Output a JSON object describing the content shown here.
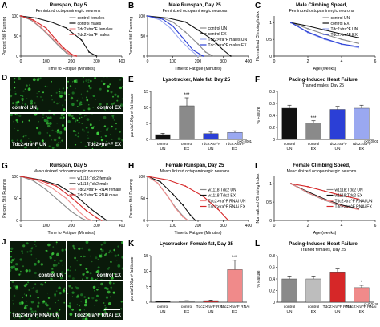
{
  "colors": {
    "black": "#111111",
    "gray": "#8a8a8a",
    "lightgray": "#bdbdbd",
    "red": "#d62728",
    "pink": "#f08a8a",
    "blue": "#2b3fd6",
    "lightblue": "#9aa8f0"
  },
  "images": {
    "D": {
      "label": "D",
      "tiles": [
        {
          "text": "control UN"
        },
        {
          "text": "control EX"
        },
        {
          "text": "Tdc2>tra^F UN"
        },
        {
          "text": "Tdc2>tra^F EX"
        }
      ]
    },
    "J": {
      "label": "J",
      "tiles": [
        {
          "text": "control UN"
        },
        {
          "text": "control EX"
        },
        {
          "text": "Tdc2>tra^F RNAi UN"
        },
        {
          "text": "Tdc2>tra^F RNAi EX"
        }
      ]
    }
  },
  "chart_data": [
    {
      "id": "A",
      "label": "A",
      "type": "line",
      "title": "Runspan, Day 5",
      "subtitle": "Feminized octopaminergic neurons",
      "xlabel": "Time to Fatigue (Minutes)",
      "ylabel": "Percent Still Running",
      "xlim": [
        0,
        400
      ],
      "ylim": [
        0,
        100
      ],
      "xticks": [
        0,
        100,
        200,
        300,
        400
      ],
      "yticks": [
        0,
        50,
        100
      ],
      "legend_position": "top-right",
      "series": [
        {
          "name": "control females",
          "color": "#8a8a8a",
          "x": [
            0,
            40,
            80,
            120,
            150,
            180,
            210
          ],
          "y": [
            100,
            90,
            70,
            45,
            25,
            8,
            0
          ]
        },
        {
          "name": "control males",
          "color": "#111111",
          "x": [
            0,
            60,
            120,
            180,
            240,
            270,
            300
          ],
          "y": [
            100,
            95,
            85,
            70,
            40,
            10,
            0
          ]
        },
        {
          "name": "Tdc2>tra^F females",
          "color": "#f08a8a",
          "x": [
            0,
            40,
            80,
            120,
            160,
            190,
            210
          ],
          "y": [
            100,
            92,
            72,
            48,
            22,
            6,
            0
          ]
        },
        {
          "name": "Tdc2>tra^F males",
          "color": "#d62728",
          "x": [
            0,
            50,
            100,
            140,
            170,
            200,
            220
          ],
          "y": [
            100,
            90,
            70,
            40,
            20,
            5,
            0
          ]
        }
      ]
    },
    {
      "id": "B",
      "label": "B",
      "type": "line",
      "title": "Male Runspan, Day 25",
      "subtitle": "Feminized octopaminergic neurons",
      "xlabel": "Time to Fatigue (Minutes)",
      "ylabel": "Percent Still Running",
      "xlim": [
        0,
        400
      ],
      "ylim": [
        0,
        100
      ],
      "xticks": [
        0,
        100,
        200,
        300,
        400
      ],
      "yticks": [
        0,
        50,
        100
      ],
      "legend_position": "right",
      "series": [
        {
          "name": "control UN",
          "color": "#8a8a8a",
          "x": [
            0,
            60,
            100,
            150,
            200,
            230,
            260
          ],
          "y": [
            100,
            95,
            85,
            60,
            30,
            10,
            0
          ]
        },
        {
          "name": "control EX",
          "color": "#111111",
          "x": [
            0,
            80,
            150,
            200,
            260,
            300,
            330
          ],
          "y": [
            100,
            95,
            85,
            65,
            40,
            15,
            0
          ]
        },
        {
          "name": "Tdc2>tra^F males UN",
          "color": "#9aa8f0",
          "x": [
            0,
            50,
            90,
            130,
            170,
            200
          ],
          "y": [
            100,
            90,
            70,
            40,
            15,
            0
          ]
        },
        {
          "name": "Tdc2>tra^F males EX",
          "color": "#2b3fd6",
          "x": [
            0,
            60,
            100,
            140,
            180,
            220
          ],
          "y": [
            100,
            92,
            75,
            45,
            15,
            0
          ]
        }
      ]
    },
    {
      "id": "C",
      "label": "C",
      "type": "line",
      "title": "Male Climbing Speed,",
      "subtitle": "Feminized octopaminergic neurons",
      "xlabel": "Age (weeks)",
      "ylabel": "Normalized Climbing Index",
      "xlim": [
        0,
        6
      ],
      "ylim": [
        0,
        1.2
      ],
      "xticks": [
        0,
        2,
        4,
        6
      ],
      "yticks": [
        0,
        0.5,
        1.0
      ],
      "legend_position": "top-right",
      "series": [
        {
          "name": "control UN",
          "color": "#8a8a8a",
          "x": [
            1,
            2,
            3,
            4,
            5
          ],
          "y": [
            1.0,
            0.82,
            0.65,
            0.5,
            0.38
          ]
        },
        {
          "name": "control EX",
          "color": "#111111",
          "x": [
            1,
            2,
            3,
            4,
            5
          ],
          "y": [
            1.0,
            0.9,
            0.78,
            0.66,
            0.55
          ]
        },
        {
          "name": "Tdc2>tra^F UN",
          "color": "#9aa8f0",
          "x": [
            1,
            2,
            3,
            4,
            5
          ],
          "y": [
            1.0,
            0.7,
            0.5,
            0.35,
            0.25
          ]
        },
        {
          "name": "Tdc2>tra^F EX",
          "color": "#2b3fd6",
          "x": [
            1,
            2,
            3,
            4,
            5
          ],
          "y": [
            1.0,
            0.72,
            0.52,
            0.36,
            0.28
          ]
        }
      ]
    },
    {
      "id": "E",
      "label": "E",
      "type": "bar",
      "title": "Lysotracker, Male fat, Day 25",
      "ylabel": "puncta/100μm² fat tissue",
      "ylim": [
        0,
        15
      ],
      "yticks": [
        0,
        5,
        10,
        15
      ],
      "categories": [
        "control UN",
        "control EX",
        "Tdc2>tra^F UN",
        "Tdc2>tra^F EX"
      ],
      "values": [
        1.5,
        10.5,
        1.8,
        2.2
      ],
      "errors": [
        0.4,
        2.5,
        0.5,
        0.5
      ],
      "colors": [
        "#111111",
        "#8a8a8a",
        "#2b3fd6",
        "#9aa8f0"
      ],
      "annotations": [
        {
          "text": "***",
          "category": "control EX"
        }
      ],
      "pvalue": "p<0.0001"
    },
    {
      "id": "F",
      "label": "F",
      "type": "bar",
      "title": "Pacing-Induced Heart Failure",
      "subtitle": "Trained males, Day 25",
      "ylabel": "% Failure",
      "ylim": [
        0,
        0.8
      ],
      "yticks": [
        0,
        0.2,
        0.4,
        0.6,
        0.8
      ],
      "categories": [
        "control UN",
        "control EX",
        "Tdc2>tra^F UN",
        "Tdc2>tra^F EX"
      ],
      "values": [
        0.52,
        0.27,
        0.5,
        0.52
      ],
      "errors": [
        0.05,
        0.04,
        0.05,
        0.05
      ],
      "colors": [
        "#111111",
        "#8a8a8a",
        "#2b3fd6",
        "#9aa8f0"
      ],
      "annotations": [
        {
          "text": "***",
          "category": "control EX"
        }
      ],
      "pvalue": "p<0.0001"
    },
    {
      "id": "G",
      "label": "G",
      "type": "line",
      "title": "Runspan, Day 5",
      "subtitle": "Masculinized octopaminergic neurons",
      "xlabel": "Time to Fatigue (Minutes)",
      "ylabel": "Percent Still Running",
      "xlim": [
        0,
        400
      ],
      "ylim": [
        0,
        100
      ],
      "xticks": [
        0,
        100,
        200,
        300,
        400
      ],
      "yticks": [
        0,
        50,
        100
      ],
      "legend_position": "top-right",
      "series": [
        {
          "name": "w1118;Tdc2 female",
          "color": "#8a8a8a",
          "x": [
            0,
            50,
            100,
            150,
            200,
            240,
            260
          ],
          "y": [
            100,
            90,
            70,
            45,
            20,
            5,
            0
          ]
        },
        {
          "name": "w1118;Tdc2 male",
          "color": "#111111",
          "x": [
            0,
            80,
            150,
            220,
            280,
            320,
            340
          ],
          "y": [
            100,
            92,
            80,
            55,
            25,
            8,
            0
          ]
        },
        {
          "name": "Tdc2>tra^F RNAi female",
          "color": "#f08a8a",
          "x": [
            0,
            60,
            120,
            180,
            230,
            260,
            280
          ],
          "y": [
            100,
            92,
            75,
            50,
            20,
            5,
            0
          ]
        },
        {
          "name": "Tdc2>tra^F RNAi male",
          "color": "#d62728",
          "x": [
            0,
            70,
            140,
            200,
            260,
            300,
            320
          ],
          "y": [
            100,
            92,
            78,
            52,
            22,
            6,
            0
          ]
        }
      ]
    },
    {
      "id": "H",
      "label": "H",
      "type": "line",
      "title": "Female Runspan, Day 25",
      "subtitle": "Masculinized octopaminergic neurons",
      "xlabel": "Time to Fatigue (Minutes)",
      "ylabel": "Percent Still Running",
      "xlim": [
        0,
        400
      ],
      "ylim": [
        0,
        100
      ],
      "xticks": [
        0,
        100,
        200,
        300,
        400
      ],
      "yticks": [
        0,
        50,
        100
      ],
      "legend_position": "right",
      "series": [
        {
          "name": "w1118;Tdc2 UN",
          "color": "#8a8a8a",
          "x": [
            0,
            40,
            80,
            110,
            140,
            160
          ],
          "y": [
            100,
            85,
            55,
            30,
            10,
            0
          ]
        },
        {
          "name": "w1118;Tdc2 EX",
          "color": "#111111",
          "x": [
            0,
            50,
            100,
            140,
            170,
            190
          ],
          "y": [
            100,
            88,
            60,
            35,
            12,
            0
          ]
        },
        {
          "name": "Tdc2>tra^F RNAi UN",
          "color": "#f08a8a",
          "x": [
            0,
            40,
            80,
            110,
            140,
            160
          ],
          "y": [
            100,
            85,
            55,
            28,
            8,
            0
          ]
        },
        {
          "name": "Tdc2>tra^F RNAi EX",
          "color": "#d62728",
          "x": [
            0,
            80,
            150,
            220,
            280,
            320
          ],
          "y": [
            100,
            92,
            78,
            55,
            25,
            0
          ]
        }
      ]
    },
    {
      "id": "I",
      "label": "I",
      "type": "line",
      "title": "Female Climbing Speed,",
      "subtitle": "Masculinized octopaminergic neurons",
      "xlabel": "Age (weeks)",
      "ylabel": "Normalized Climbing Index",
      "xlim": [
        0,
        6
      ],
      "ylim": [
        0,
        1.2
      ],
      "xticks": [
        0,
        2,
        4,
        6
      ],
      "yticks": [
        0,
        0.5,
        1.0
      ],
      "legend_position": "right",
      "series": [
        {
          "name": "w1118;Tdc2 UN",
          "color": "#8a8a8a",
          "x": [
            1,
            2,
            3,
            4,
            5
          ],
          "y": [
            1.0,
            0.75,
            0.55,
            0.4,
            0.3
          ]
        },
        {
          "name": "w1118;Tdc2 EX",
          "color": "#111111",
          "x": [
            1,
            2,
            3,
            4,
            5
          ],
          "y": [
            1.0,
            0.78,
            0.58,
            0.42,
            0.32
          ]
        },
        {
          "name": "Tdc2>tra^F RNAi UN",
          "color": "#f08a8a",
          "x": [
            1,
            2,
            3,
            4,
            5
          ],
          "y": [
            1.0,
            0.76,
            0.56,
            0.4,
            0.3
          ]
        },
        {
          "name": "Tdc2>tra^F RNAi EX",
          "color": "#d62728",
          "x": [
            1,
            2,
            3,
            4,
            5
          ],
          "y": [
            1.0,
            0.92,
            0.8,
            0.68,
            0.58
          ]
        }
      ]
    },
    {
      "id": "K",
      "label": "K",
      "type": "bar",
      "title": "Lysotracker, Female fat, Day 25",
      "ylabel": "puncta/100μm² fat tissue",
      "ylim": [
        0,
        15
      ],
      "yticks": [
        0,
        5,
        10,
        15
      ],
      "categories": [
        "control UN",
        "control EX",
        "Tdc2>tra^F RNAi UN",
        "Tdc2>tra^F RNAi EX"
      ],
      "values": [
        0.3,
        0.4,
        0.5,
        10.5
      ],
      "errors": [
        0.1,
        0.1,
        0.2,
        3.0
      ],
      "colors": [
        "#111111",
        "#8a8a8a",
        "#d62728",
        "#f08a8a"
      ],
      "annotations": [
        {
          "text": "***",
          "category": "Tdc2>tra^F RNAi EX"
        }
      ]
    },
    {
      "id": "L",
      "label": "L",
      "type": "bar",
      "title": "Pacing-Induced Heart Failure",
      "subtitle": "Trained females, Day 25",
      "ylabel": "% Failure",
      "ylim": [
        0,
        0.8
      ],
      "yticks": [
        0,
        0.2,
        0.4,
        0.6,
        0.8
      ],
      "categories": [
        "control UN",
        "control EX",
        "Tdc2>tra^F RNAi UN",
        "Tdc2>tra^F RNAi EX"
      ],
      "values": [
        0.4,
        0.4,
        0.52,
        0.25
      ],
      "errors": [
        0.05,
        0.05,
        0.05,
        0.04
      ],
      "colors": [
        "#8a8a8a",
        "#bdbdbd",
        "#d62728",
        "#f08a8a"
      ],
      "annotations": [
        {
          "text": "*",
          "category": "Tdc2>tra^F RNAi EX"
        }
      ],
      "pvalue": "p=0.0436"
    }
  ]
}
